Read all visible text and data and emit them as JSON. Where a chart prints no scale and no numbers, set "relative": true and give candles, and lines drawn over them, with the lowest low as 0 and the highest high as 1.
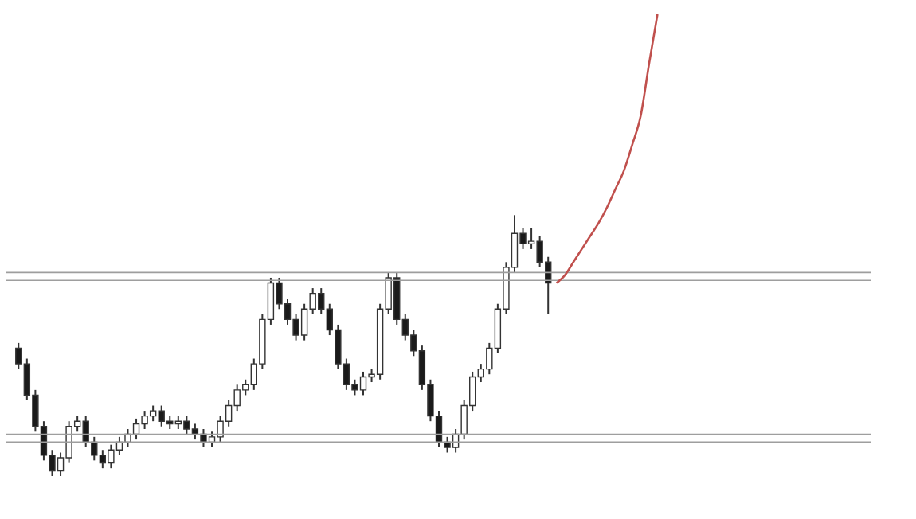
{
  "chart_data": {
    "type": "candlestick",
    "relative": true,
    "categories": [
      null,
      null,
      null,
      null,
      null,
      null,
      null,
      null,
      null,
      null,
      null,
      null,
      null,
      null,
      null,
      null,
      null,
      null,
      null,
      null,
      null,
      null,
      null,
      null,
      null,
      null,
      null,
      null,
      null,
      null,
      null,
      null,
      null,
      null,
      null,
      null,
      null,
      null,
      null,
      null,
      null,
      null,
      null,
      null,
      null,
      null,
      null,
      null,
      null,
      null,
      null,
      null,
      null,
      null,
      null,
      null,
      null,
      null,
      null,
      null,
      null,
      null,
      null,
      null,
      null,
      null,
      null,
      null,
      null,
      null,
      null,
      null,
      null,
      null,
      null,
      null,
      null,
      null,
      null,
      null,
      null,
      null,
      null,
      null,
      null,
      null,
      null,
      null,
      null,
      null,
      null,
      null,
      null,
      null,
      null,
      null,
      null,
      null,
      null,
      null,
      null
    ],
    "ohlc": [
      [
        0.49,
        0.51,
        0.41,
        0.43
      ],
      [
        0.43,
        0.45,
        0.29,
        0.31
      ],
      [
        0.31,
        0.33,
        0.17,
        0.19
      ],
      [
        0.19,
        0.21,
        0.06,
        0.08
      ],
      [
        0.08,
        0.1,
        0.0,
        0.02
      ],
      [
        0.02,
        0.09,
        0.0,
        0.07
      ],
      [
        0.07,
        0.21,
        0.05,
        0.19
      ],
      [
        0.19,
        0.23,
        0.17,
        0.21
      ],
      [
        0.21,
        0.23,
        0.11,
        0.13
      ],
      [
        0.13,
        0.15,
        0.06,
        0.08
      ],
      [
        0.08,
        0.1,
        0.03,
        0.05
      ],
      [
        0.05,
        0.12,
        0.03,
        0.1
      ],
      [
        0.1,
        0.15,
        0.08,
        0.13
      ],
      [
        0.13,
        0.18,
        0.11,
        0.16
      ],
      [
        0.16,
        0.22,
        0.14,
        0.2
      ],
      [
        0.2,
        0.25,
        0.18,
        0.23
      ],
      [
        0.23,
        0.27,
        0.21,
        0.25
      ],
      [
        0.25,
        0.27,
        0.19,
        0.21
      ],
      [
        0.21,
        0.23,
        0.18,
        0.2
      ],
      [
        0.2,
        0.23,
        0.18,
        0.21
      ],
      [
        0.21,
        0.23,
        0.16,
        0.18
      ],
      [
        0.18,
        0.2,
        0.14,
        0.16
      ],
      [
        0.16,
        0.18,
        0.11,
        0.13
      ],
      [
        0.13,
        0.17,
        0.11,
        0.15
      ],
      [
        0.15,
        0.23,
        0.13,
        0.21
      ],
      [
        0.21,
        0.29,
        0.19,
        0.27
      ],
      [
        0.27,
        0.35,
        0.25,
        0.33
      ],
      [
        0.33,
        0.37,
        0.31,
        0.35
      ],
      [
        0.35,
        0.45,
        0.33,
        0.43
      ],
      [
        0.43,
        0.62,
        0.41,
        0.6
      ],
      [
        0.6,
        0.76,
        0.58,
        0.74
      ],
      [
        0.74,
        0.76,
        0.64,
        0.66
      ],
      [
        0.66,
        0.68,
        0.58,
        0.6
      ],
      [
        0.6,
        0.62,
        0.52,
        0.54
      ],
      [
        0.54,
        0.66,
        0.52,
        0.64
      ],
      [
        0.64,
        0.72,
        0.62,
        0.7
      ],
      [
        0.7,
        0.72,
        0.62,
        0.64
      ],
      [
        0.64,
        0.66,
        0.54,
        0.56
      ],
      [
        0.56,
        0.58,
        0.41,
        0.43
      ],
      [
        0.43,
        0.45,
        0.33,
        0.35
      ],
      [
        0.35,
        0.37,
        0.31,
        0.33
      ],
      [
        0.33,
        0.4,
        0.31,
        0.38
      ],
      [
        0.38,
        0.41,
        0.36,
        0.39
      ],
      [
        0.39,
        0.66,
        0.37,
        0.64
      ],
      [
        0.64,
        0.78,
        0.62,
        0.76
      ],
      [
        0.76,
        0.78,
        0.58,
        0.6
      ],
      [
        0.6,
        0.62,
        0.52,
        0.54
      ],
      [
        0.54,
        0.56,
        0.46,
        0.48
      ],
      [
        0.48,
        0.5,
        0.33,
        0.35
      ],
      [
        0.35,
        0.37,
        0.21,
        0.23
      ],
      [
        0.23,
        0.25,
        0.11,
        0.13
      ],
      [
        0.13,
        0.15,
        0.09,
        0.11
      ],
      [
        0.11,
        0.18,
        0.09,
        0.16
      ],
      [
        0.16,
        0.29,
        0.14,
        0.27
      ],
      [
        0.27,
        0.4,
        0.25,
        0.38
      ],
      [
        0.38,
        0.43,
        0.36,
        0.41
      ],
      [
        0.41,
        0.51,
        0.39,
        0.49
      ],
      [
        0.49,
        0.66,
        0.47,
        0.64
      ],
      [
        0.64,
        0.82,
        0.62,
        0.8
      ],
      [
        0.8,
        1.0,
        0.78,
        0.93
      ],
      [
        0.93,
        0.95,
        0.87,
        0.89
      ],
      [
        0.89,
        0.95,
        0.87,
        0.9
      ],
      [
        0.9,
        0.92,
        0.8,
        0.82
      ],
      [
        0.82,
        0.84,
        0.62,
        0.74
      ],
      null,
      null,
      null,
      null,
      null,
      null,
      null,
      null,
      null,
      null,
      null,
      null,
      null,
      null,
      null,
      null,
      null,
      null,
      null,
      null,
      null,
      null,
      null,
      null,
      null,
      null,
      null,
      null,
      null,
      null,
      null,
      null,
      null,
      null,
      null,
      null,
      null
    ],
    "series": [
      {
        "type": "line",
        "color": "#c0504d",
        "values": [
          null,
          null,
          null,
          null,
          null,
          null,
          null,
          null,
          null,
          null,
          null,
          null,
          null,
          null,
          null,
          null,
          null,
          null,
          null,
          null,
          null,
          null,
          null,
          null,
          null,
          null,
          null,
          null,
          null,
          null,
          null,
          null,
          null,
          null,
          null,
          null,
          null,
          null,
          null,
          null,
          null,
          null,
          null,
          null,
          null,
          null,
          null,
          null,
          null,
          null,
          null,
          null,
          null,
          null,
          null,
          null,
          null,
          null,
          null,
          null,
          null,
          null,
          null,
          null,
          0.74,
          0.77,
          0.82,
          0.87,
          0.92,
          0.97,
          1.03,
          1.1,
          1.17,
          1.27,
          1.38,
          1.58,
          1.77,
          null,
          null,
          null,
          null,
          null,
          null,
          null,
          null,
          null,
          null,
          null,
          null,
          null,
          null,
          null,
          null,
          null,
          null,
          null,
          null,
          null,
          null,
          null,
          null
        ]
      }
    ],
    "ref_lines": [
      {
        "axis": "y",
        "value": 0.78,
        "color": "#9e9e9e"
      },
      {
        "axis": "y",
        "value": 0.75,
        "color": "#9e9e9e"
      },
      {
        "axis": "y",
        "value": 0.16,
        "color": "#9e9e9e"
      },
      {
        "axis": "y",
        "value": 0.13,
        "color": "#9e9e9e"
      }
    ]
  }
}
